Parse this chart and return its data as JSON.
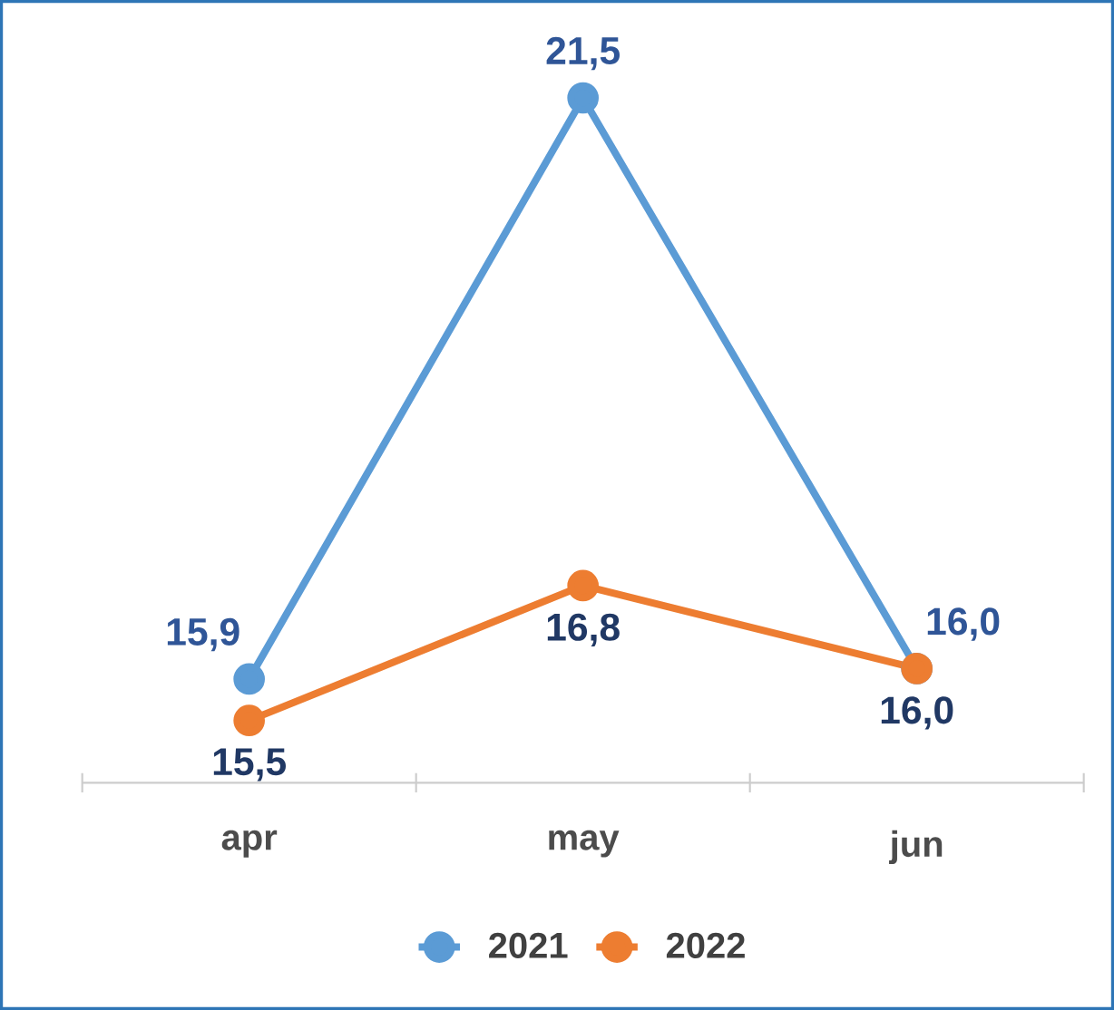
{
  "chart_data": {
    "type": "line",
    "categories": [
      "apr",
      "may",
      "jun"
    ],
    "series": [
      {
        "name": "2021",
        "color": "#5b9bd5",
        "values": [
          15.9,
          21.5,
          16.0
        ],
        "value_labels": [
          "15,9",
          "21,5",
          "16,0"
        ]
      },
      {
        "name": "2022",
        "color": "#ed7d31",
        "values": [
          15.5,
          16.8,
          16.0
        ],
        "value_labels": [
          "15,5",
          "16,8",
          "16,0"
        ]
      }
    ],
    "marker": "circle",
    "line_style": "solid",
    "legend": "bottom",
    "grid": false,
    "tick_labels": "x"
  }
}
